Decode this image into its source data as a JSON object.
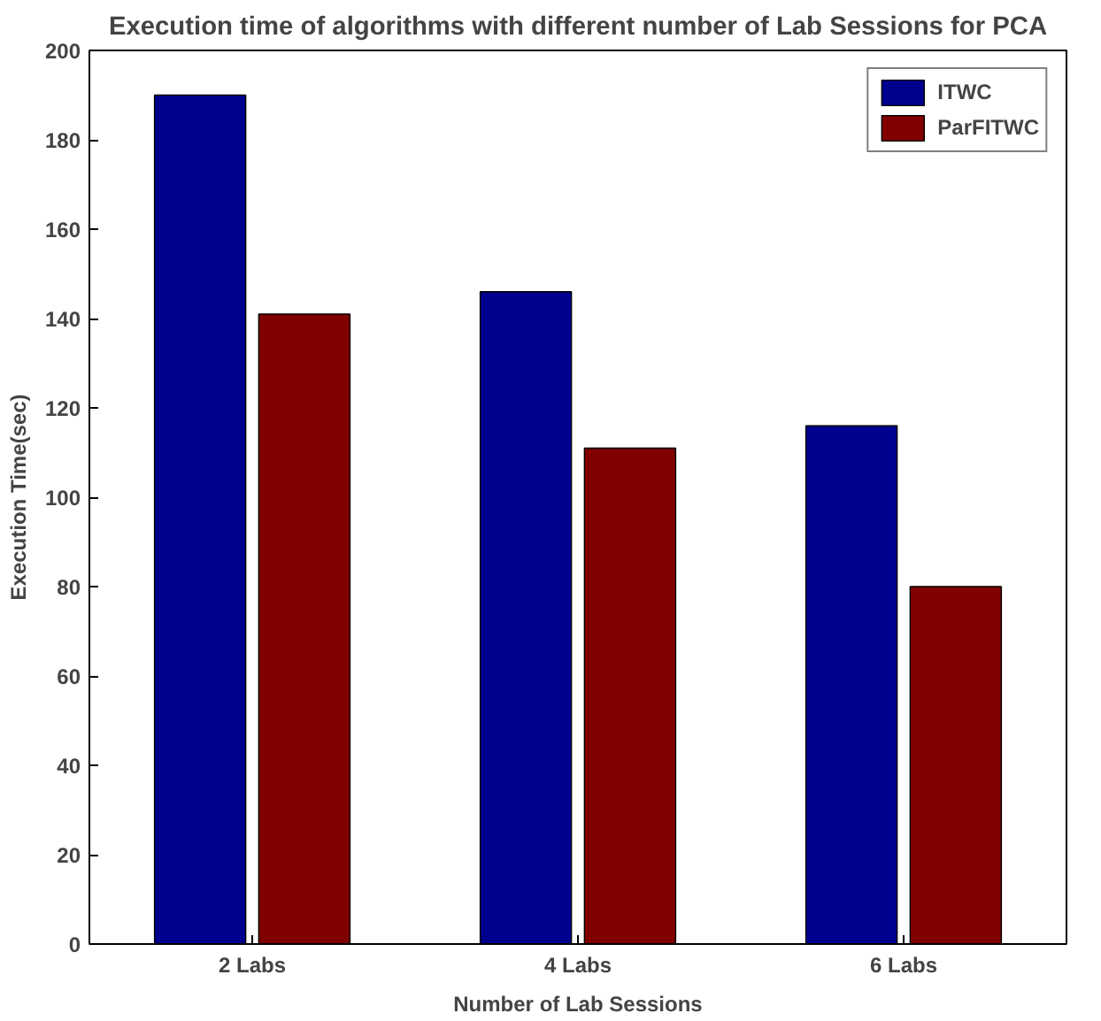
{
  "chart_data": {
    "type": "bar",
    "title": "Execution time of algorithms with different number of Lab Sessions for PCA",
    "xlabel": "Number of Lab Sessions",
    "ylabel": "Execution Time(sec)",
    "categories": [
      "2 Labs",
      "4 Labs",
      "6 Labs"
    ],
    "series": [
      {
        "name": "ITWC",
        "color": "#00008f",
        "values": [
          190,
          146,
          116
        ]
      },
      {
        "name": "ParFITWC",
        "color": "#800000",
        "values": [
          141,
          111,
          80
        ]
      }
    ],
    "ylim": [
      0,
      200
    ],
    "yticks": [
      0,
      20,
      40,
      60,
      80,
      100,
      120,
      140,
      160,
      180,
      200
    ],
    "grid": false,
    "legend": "top right"
  }
}
